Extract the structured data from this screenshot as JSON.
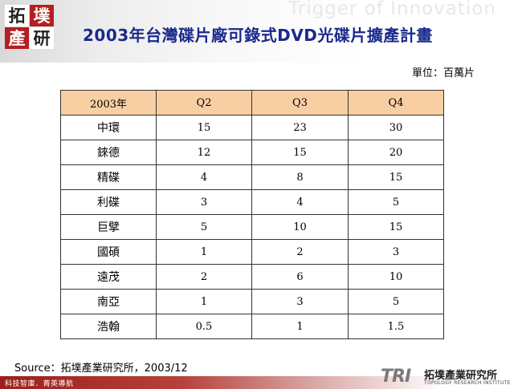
{
  "header": {
    "tagline": "Trigger of Innovation",
    "logo_chars": [
      "拓",
      "墣",
      "產",
      "研"
    ],
    "title": "2003年台灣碟片廠可錄式DVD光碟片擴產計畫"
  },
  "unit_note": "單位：百萬片",
  "table": {
    "headers": [
      "2003年",
      "Q2",
      "Q3",
      "Q4"
    ],
    "rows": [
      [
        "中環",
        "15",
        "23",
        "30"
      ],
      [
        "錸德",
        "12",
        "15",
        "20"
      ],
      [
        "精碟",
        "4",
        "8",
        "15"
      ],
      [
        "利碟",
        "3",
        "4",
        "5"
      ],
      [
        "巨擘",
        "5",
        "10",
        "15"
      ],
      [
        "國碩",
        "1",
        "2",
        "3"
      ],
      [
        "遠茂",
        "2",
        "6",
        "10"
      ],
      [
        "南亞",
        "1",
        "3",
        "5"
      ],
      [
        "浩翰",
        "0.5",
        "1",
        "1.5"
      ]
    ]
  },
  "source": "Source：拓墣產業研究所，2003/12",
  "footer": {
    "slogan": "科技智庫．菁英導航",
    "tri_mark": "TRI",
    "tri_cn": "拓墣產業研究所",
    "tri_en": "TOPOLOGY RESEARCH INSTITUTE"
  },
  "colors": {
    "title": "#1a2a8c",
    "table_header_bg": "#f8cfa3",
    "footer_red": "#9c1e1a",
    "logo_red": "#b51f1f"
  }
}
